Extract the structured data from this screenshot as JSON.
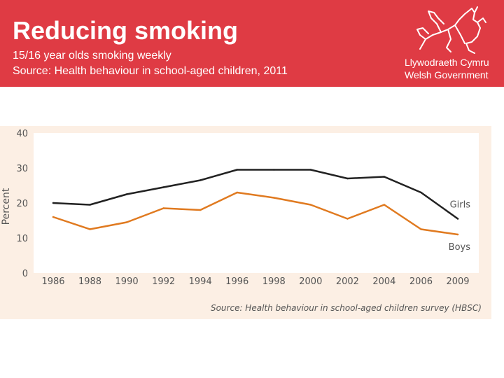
{
  "header": {
    "title": "Reducing smoking",
    "subtitle": "15/16 year olds smoking weekly",
    "source": "Source: Health behaviour in school-aged children, 2011"
  },
  "logo": {
    "line1": "Llywodraeth Cymru",
    "line2": "Welsh Government"
  },
  "colors": {
    "header_bg": "#df3b44",
    "girls_line": "#222222",
    "boys_line": "#e07a20",
    "panel_bg": "#fcefe4"
  },
  "chart_data": {
    "type": "line",
    "categories": [
      "1986",
      "1988",
      "1990",
      "1992",
      "1994",
      "1996",
      "1998",
      "2000",
      "2002",
      "2004",
      "2006",
      "2009"
    ],
    "series": [
      {
        "name": "Girls",
        "values": [
          20,
          19.5,
          22.5,
          24.5,
          26.5,
          29.5,
          29.5,
          29.5,
          27,
          27.5,
          23,
          15.5
        ]
      },
      {
        "name": "Boys",
        "values": [
          16,
          12.5,
          14.5,
          18.5,
          18,
          23,
          21.5,
          19.5,
          15.5,
          19.5,
          12.5,
          11
        ]
      }
    ],
    "ylabel": "Percent",
    "ylim": [
      0,
      40
    ],
    "yticks": [
      0,
      10,
      20,
      30,
      40
    ],
    "source_note": "Source: Health behaviour in school-aged children survey (HBSC)"
  }
}
